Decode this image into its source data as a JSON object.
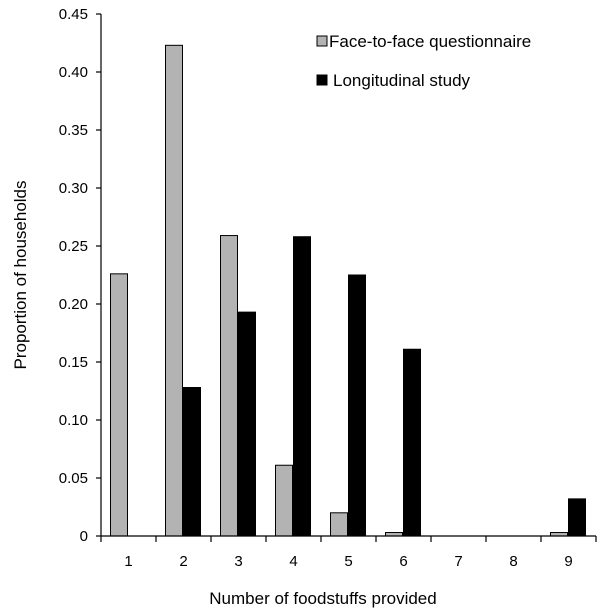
{
  "chart_data": {
    "type": "bar",
    "xlabel": "Number of foodstuffs provided",
    "ylabel": "Proportion of households",
    "categories": [
      "1",
      "2",
      "3",
      "4",
      "5",
      "6",
      "7",
      "8",
      "9"
    ],
    "ylim": [
      0,
      0.45
    ],
    "yticks": [
      "0",
      "0.05",
      "0.10",
      "0.15",
      "0.20",
      "0.25",
      "0.30",
      "0.35",
      "0.40",
      "0.45"
    ],
    "grid": false,
    "legend_position": "top-right",
    "series": [
      {
        "name": "Face-to-face questionnaire",
        "color": "#b3b3b3",
        "values": [
          0.226,
          0.423,
          0.259,
          0.061,
          0.02,
          0.003,
          0,
          0,
          0.003
        ]
      },
      {
        "name": "Longitudinal study",
        "color": "#000000",
        "values": [
          0,
          0.128,
          0.193,
          0.258,
          0.225,
          0.161,
          0,
          0,
          0.032
        ]
      }
    ]
  }
}
